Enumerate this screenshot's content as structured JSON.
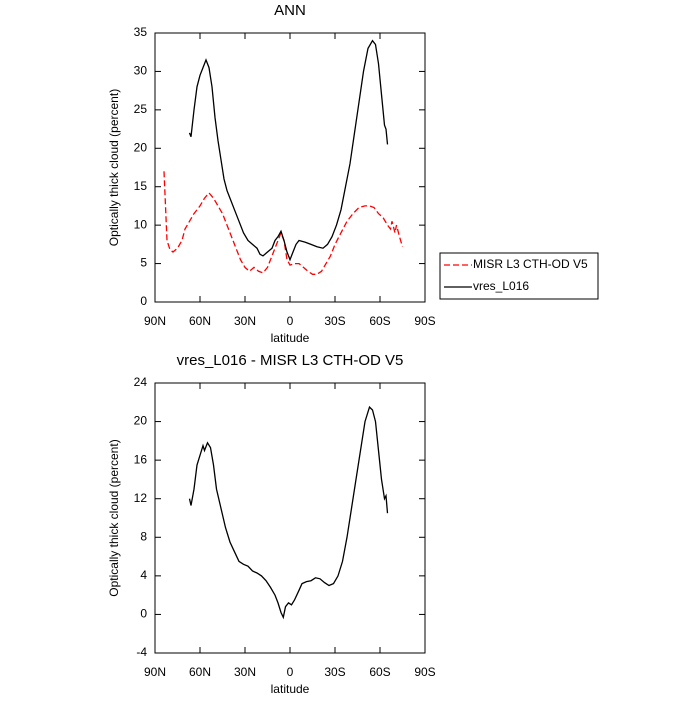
{
  "chart_data": [
    {
      "type": "line",
      "title": "ANN",
      "ylabel": "Optically thick cloud (percent)",
      "xlabel": "latitude",
      "xlim": [
        90,
        -90
      ],
      "xticks": [
        {
          "value": 90,
          "label": "90N"
        },
        {
          "value": 60,
          "label": "60N"
        },
        {
          "value": 30,
          "label": "30N"
        },
        0,
        {
          "value": -30,
          "label": "30S"
        },
        {
          "value": -60,
          "label": "60S"
        },
        {
          "value": -90,
          "label": "90S"
        }
      ],
      "ylim": [
        0,
        35
      ],
      "yticks": [
        0,
        5,
        10,
        15,
        20,
        25,
        30,
        35
      ],
      "legend": "right",
      "series": [
        {
          "name": "MISR L3 CTH-OD V5",
          "color": "#ff0000",
          "line_style": "dashed",
          "x": [
            84,
            82,
            80,
            78,
            75,
            72,
            70,
            67,
            64,
            60,
            57,
            54,
            51,
            48,
            45,
            42,
            39,
            36,
            33,
            30,
            27,
            24,
            21,
            18,
            15,
            12,
            9,
            6,
            4,
            2,
            0,
            -3,
            -6,
            -9,
            -12,
            -15,
            -18,
            -21,
            -24,
            -27,
            -30,
            -34,
            -38,
            -42,
            -46,
            -50,
            -53,
            -56,
            -59,
            -62,
            -65,
            -67,
            -68,
            -70,
            -71,
            -73,
            -75
          ],
          "values": [
            17,
            8,
            6.8,
            6.5,
            7,
            8,
            9.5,
            10.5,
            11.5,
            12.5,
            13.5,
            14.2,
            13.5,
            12.5,
            11.5,
            10,
            8.5,
            7,
            5.5,
            4.5,
            4,
            4.5,
            4,
            3.8,
            4.5,
            6,
            7.5,
            9,
            8,
            5.5,
            4.8,
            5,
            5,
            4.5,
            4,
            3.6,
            3.6,
            4,
            5,
            6,
            7.5,
            9,
            10.5,
            11.5,
            12.3,
            12.5,
            12.5,
            12.3,
            11.5,
            11,
            10,
            9.5,
            10.5,
            9,
            10,
            8.5,
            7.2
          ]
        },
        {
          "name": "vres_L016",
          "color": "#000000",
          "line_style": "solid",
          "x": [
            67,
            66,
            64,
            62,
            60,
            58,
            56,
            54,
            52,
            50,
            48,
            46,
            44,
            42,
            40,
            37,
            34,
            31,
            28,
            25,
            22,
            20,
            18,
            15,
            12,
            10,
            8,
            6,
            4,
            2,
            0,
            -2,
            -4,
            -6,
            -10,
            -14,
            -18,
            -22,
            -25,
            -28,
            -31,
            -34,
            -37,
            -40,
            -43,
            -46,
            -49,
            -52,
            -55,
            -57,
            -59,
            -61,
            -63,
            -64,
            -65
          ],
          "values": [
            22,
            21.5,
            25,
            28,
            29.5,
            30.5,
            31.5,
            30.5,
            28,
            24,
            21,
            18.5,
            16,
            14.5,
            13.5,
            12,
            10.5,
            9,
            8,
            7.5,
            7,
            6.2,
            6,
            6.5,
            7,
            8,
            8.5,
            9.2,
            8,
            6.5,
            5.5,
            6.5,
            7.5,
            8,
            7.8,
            7.5,
            7.2,
            7,
            7.5,
            8.5,
            10,
            12,
            15,
            18,
            22,
            26,
            30,
            33,
            34,
            33.5,
            31,
            27,
            23,
            22.5,
            20.5
          ]
        }
      ]
    },
    {
      "type": "line",
      "title": "vres_L016 - MISR L3 CTH-OD V5",
      "ylabel": "Optically thick cloud (percent)",
      "xlabel": "latitude",
      "xlim": [
        90,
        -90
      ],
      "xticks": [
        {
          "value": 90,
          "label": "90N"
        },
        {
          "value": 60,
          "label": "60N"
        },
        {
          "value": 30,
          "label": "30N"
        },
        0,
        {
          "value": -30,
          "label": "30S"
        },
        {
          "value": -60,
          "label": "60S"
        },
        {
          "value": -90,
          "label": "90S"
        }
      ],
      "ylim": [
        -4,
        24
      ],
      "yticks": [
        -4,
        0,
        4,
        8,
        12,
        16,
        20,
        24
      ],
      "series": [
        {
          "color": "#000000",
          "line_style": "solid",
          "x": [
            67,
            66,
            64,
            62,
            60,
            58,
            57,
            55,
            53,
            51,
            49,
            46,
            43,
            40,
            37,
            34,
            31,
            28,
            25,
            22,
            19,
            16,
            13,
            10,
            8,
            6,
            4.5,
            3,
            1,
            -1,
            -3,
            -6,
            -8,
            -11,
            -14,
            -17,
            -20,
            -23,
            -26,
            -29,
            -32,
            -35,
            -38,
            -41,
            -44,
            -47,
            -50,
            -53,
            -55,
            -57,
            -59,
            -61,
            -63,
            -64,
            -65
          ],
          "values": [
            12,
            11.3,
            13,
            15.5,
            16.5,
            17.5,
            17,
            17.8,
            17.3,
            15.5,
            13,
            11,
            9,
            7.5,
            6.5,
            5.5,
            5.2,
            5,
            4.5,
            4.3,
            4,
            3.5,
            2.8,
            2,
            1.2,
            0.2,
            -0.3,
            0.8,
            1.2,
            1,
            1.5,
            2.5,
            3.2,
            3.4,
            3.5,
            3.8,
            3.7,
            3.3,
            3,
            3.2,
            4,
            5.5,
            8,
            11,
            14,
            17,
            20,
            21.5,
            21.2,
            20,
            17,
            14,
            12,
            12.3,
            10.5
          ]
        }
      ]
    }
  ]
}
